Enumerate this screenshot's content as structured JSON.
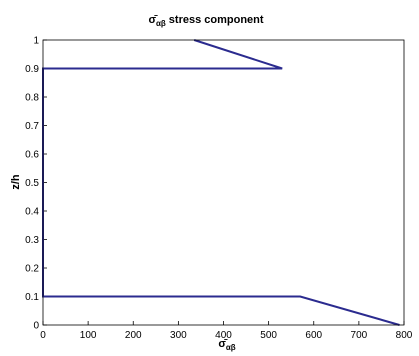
{
  "chart_data": {
    "type": "line",
    "title": "stress component",
    "title_symbol": "σ̄",
    "title_subscript": "αβ",
    "xlabel": "σ̄",
    "xlabel_subscript": "αβ",
    "ylabel": "z/h",
    "xlim": [
      0,
      800
    ],
    "ylim": [
      0,
      1
    ],
    "x_ticks": [
      "0",
      "100",
      "200",
      "300",
      "400",
      "500",
      "600",
      "700",
      "800"
    ],
    "y_ticks": [
      "0",
      "0.1",
      "0.2",
      "0.3",
      "0.4",
      "0.5",
      "0.6",
      "0.7",
      "0.8",
      "0.9",
      "1"
    ],
    "grid": false,
    "series": [
      {
        "color": "#2b2b8f",
        "points": [
          [
            790,
            0
          ],
          [
            570,
            0.1
          ],
          [
            0,
            0.1
          ],
          [
            0,
            0.9
          ],
          [
            530,
            0.9
          ],
          [
            335,
            1.0
          ]
        ]
      }
    ]
  }
}
